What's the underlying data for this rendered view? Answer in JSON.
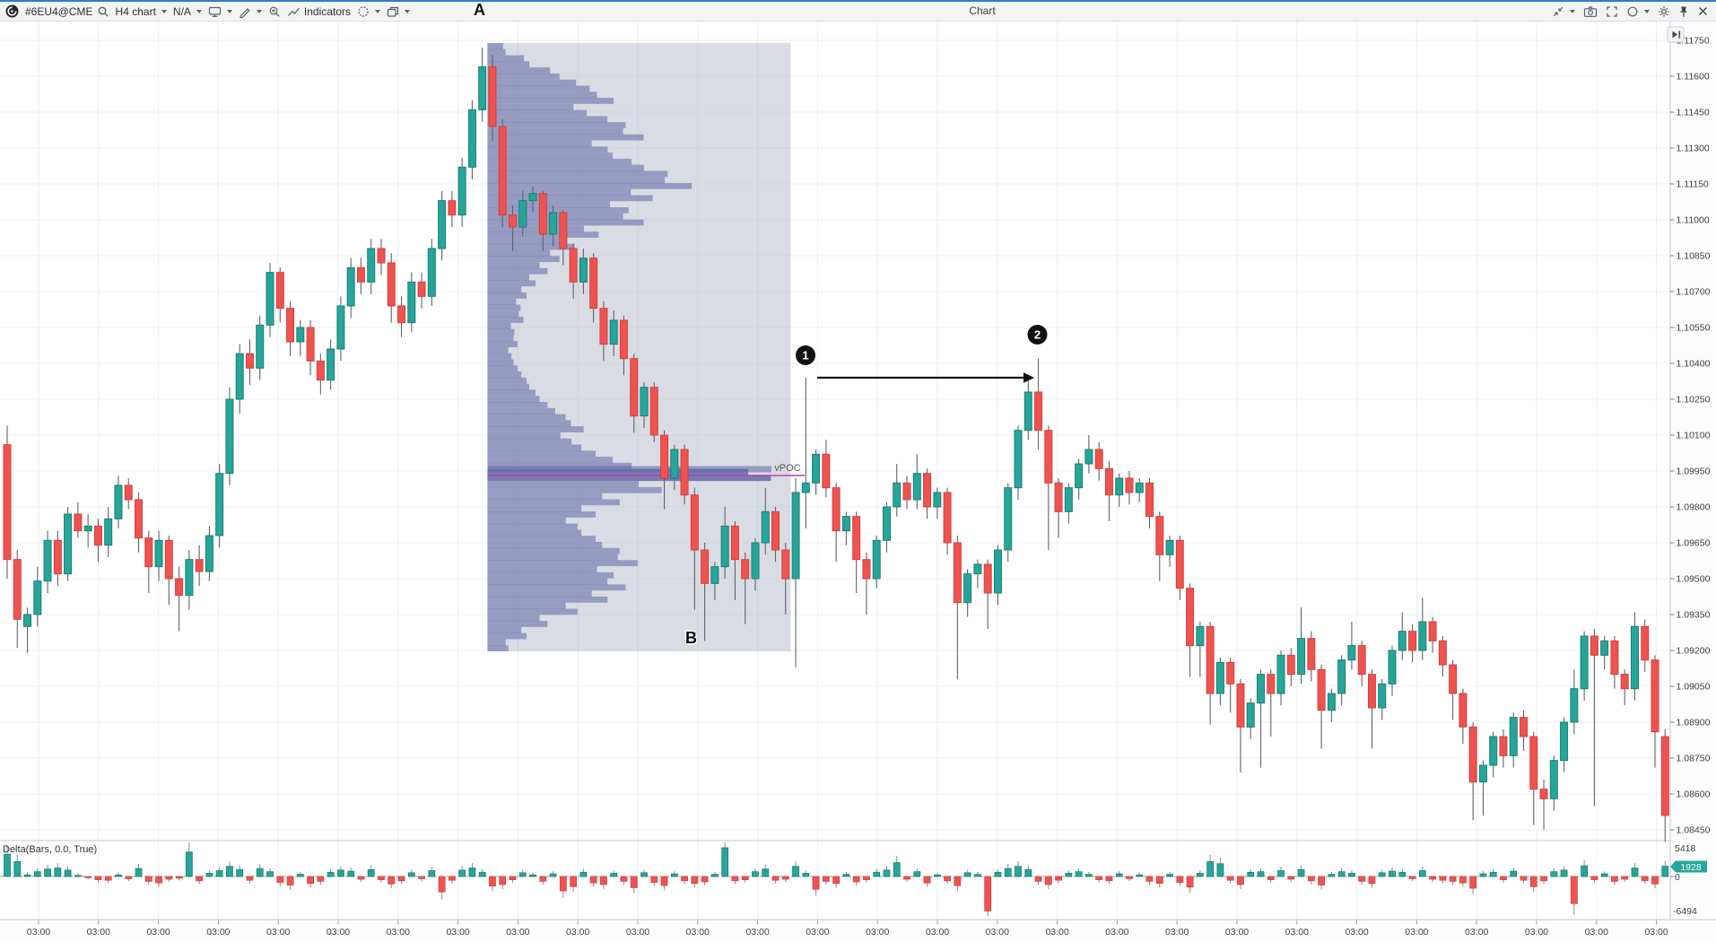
{
  "toolbar": {
    "symbol": "#6EU4@CME",
    "timeframe": "H4 chart",
    "account": "N/A",
    "indicators_label": "Indicators",
    "title": "Chart",
    "left_icons": [
      "logo",
      "search-icon",
      "caret-down-icon",
      "monitor-icon",
      "pencil-icon",
      "zoom-in-icon",
      "trendline-icon",
      "crosshair-icon",
      "layers-icon"
    ],
    "right_icons": [
      "collapse-icon",
      "camera-icon",
      "expand-icon",
      "shape-circle-icon",
      "gear-icon",
      "pin-icon",
      "close-icon"
    ],
    "autoscroll_icon": "play-to-end-icon"
  },
  "annotations": {
    "point_a": "A",
    "point_b": "B",
    "marker_1": "1",
    "marker_2": "2",
    "vpoc_label": "vPOC"
  },
  "delta_panel": {
    "label": "Delta(Bars, 0.0, True)",
    "scale_max": "5418",
    "scale_zero": "0",
    "scale_min": "-6494",
    "last_value": "1928"
  },
  "price_axis": {
    "labels": [
      "1.11750",
      "1.11600",
      "1.11450",
      "1.11300",
      "1.11150",
      "1.11000",
      "1.10850",
      "1.10700",
      "1.10550",
      "1.10400",
      "1.10250",
      "1.10100",
      "1.09950",
      "1.09800",
      "1.09650",
      "1.09500",
      "1.09350",
      "1.09200",
      "1.09050",
      "1.08900",
      "1.08750",
      "1.08600",
      "1.08450"
    ]
  },
  "time_axis": {
    "label": "03:00",
    "tick_count": 28
  },
  "colors": {
    "accent_blue": "#2e7dd2",
    "candle_up": "#26a69a",
    "candle_up_border": "#1d7d72",
    "candle_down": "#ef5350",
    "candle_down_border": "#cf423f",
    "wick": "#5f6368",
    "profile_bar": "rgba(116,121,176,0.66)",
    "profile_vpoc_row": "rgba(99,104,168,0.85)",
    "region_fill": "rgba(167,172,188,0.42)",
    "vpoc_line": "#b93cba",
    "badge_fill": "#26a69a",
    "marker_fill": "#111111"
  },
  "chart_data": {
    "type": "candlestick",
    "symbol": "#6EU4@CME",
    "timeframe": "H4",
    "title": "Chart",
    "price_axis": {
      "top": 1.1175,
      "step": 0.0015,
      "tick_count": 23,
      "bottom": 1.0845
    },
    "candles": [
      [
        1.1006,
        1.1014,
        1.095,
        1.0958
      ],
      [
        1.0958,
        1.0962,
        1.0921,
        1.0933
      ],
      [
        1.093,
        1.0938,
        1.0919,
        1.0935
      ],
      [
        1.0935,
        1.0955,
        1.093,
        1.0949
      ],
      [
        1.0949,
        1.097,
        1.0944,
        1.0966
      ],
      [
        1.0966,
        1.097,
        1.0947,
        1.0952
      ],
      [
        1.0952,
        1.098,
        1.0949,
        1.0977
      ],
      [
        1.0977,
        1.0982,
        1.0967,
        1.097
      ],
      [
        1.097,
        1.0977,
        1.0963,
        1.0972
      ],
      [
        1.0972,
        1.0975,
        1.0957,
        1.0964
      ],
      [
        1.0964,
        1.098,
        1.0959,
        1.0975
      ],
      [
        1.0975,
        1.0993,
        1.0971,
        1.0989
      ],
      [
        1.0989,
        1.0992,
        1.0979,
        1.0983
      ],
      [
        1.0983,
        1.0986,
        1.0961,
        1.0967
      ],
      [
        1.0967,
        1.097,
        1.0944,
        1.0955
      ],
      [
        1.0955,
        1.097,
        1.0949,
        1.0966
      ],
      [
        1.0966,
        1.0968,
        1.0939,
        1.095
      ],
      [
        1.095,
        1.0955,
        1.0928,
        1.0943
      ],
      [
        1.0943,
        1.0962,
        1.0937,
        1.0958
      ],
      [
        1.0958,
        1.0964,
        1.0947,
        1.0953
      ],
      [
        1.0953,
        1.0972,
        1.0949,
        1.0968
      ],
      [
        1.0968,
        1.0998,
        1.0963,
        1.0994
      ],
      [
        1.0994,
        1.103,
        1.0989,
        1.1025
      ],
      [
        1.1025,
        1.1048,
        1.1019,
        1.1044
      ],
      [
        1.1044,
        1.105,
        1.1031,
        1.1038
      ],
      [
        1.1038,
        1.106,
        1.1033,
        1.1056
      ],
      [
        1.1056,
        1.1082,
        1.1051,
        1.1078
      ],
      [
        1.1078,
        1.108,
        1.1057,
        1.1063
      ],
      [
        1.1063,
        1.1066,
        1.1043,
        1.1049
      ],
      [
        1.1049,
        1.1058,
        1.1043,
        1.1055
      ],
      [
        1.1055,
        1.1058,
        1.1035,
        1.1041
      ],
      [
        1.1041,
        1.1044,
        1.1027,
        1.1033
      ],
      [
        1.1033,
        1.105,
        1.1029,
        1.1046
      ],
      [
        1.1046,
        1.1068,
        1.1041,
        1.1064
      ],
      [
        1.1064,
        1.1084,
        1.1059,
        1.108
      ],
      [
        1.108,
        1.1084,
        1.1069,
        1.1074
      ],
      [
        1.1074,
        1.1092,
        1.1069,
        1.1088
      ],
      [
        1.1088,
        1.1092,
        1.1077,
        1.1082
      ],
      [
        1.1082,
        1.1086,
        1.1057,
        1.1064
      ],
      [
        1.1064,
        1.1068,
        1.1051,
        1.1057
      ],
      [
        1.1057,
        1.1078,
        1.1053,
        1.1074
      ],
      [
        1.1074,
        1.1078,
        1.1063,
        1.1068
      ],
      [
        1.1068,
        1.1092,
        1.1064,
        1.1088
      ],
      [
        1.1088,
        1.1112,
        1.1083,
        1.1108
      ],
      [
        1.1108,
        1.1112,
        1.1097,
        1.1102
      ],
      [
        1.1102,
        1.1126,
        1.1097,
        1.1122
      ],
      [
        1.1122,
        1.115,
        1.1117,
        1.1146
      ],
      [
        1.1146,
        1.1172,
        1.1141,
        1.1164
      ],
      [
        1.1164,
        1.1169,
        1.1133,
        1.1139
      ],
      [
        1.1139,
        1.1142,
        1.1097,
        1.1102
      ],
      [
        1.1102,
        1.1106,
        1.1087,
        1.1097
      ],
      [
        1.1097,
        1.1112,
        1.1093,
        1.1108
      ],
      [
        1.1108,
        1.1114,
        1.1103,
        1.1111
      ],
      [
        1.1111,
        1.1112,
        1.1087,
        1.1094
      ],
      [
        1.1094,
        1.1106,
        1.1089,
        1.1103
      ],
      [
        1.1103,
        1.1104,
        1.1081,
        1.1088
      ],
      [
        1.1088,
        1.109,
        1.1067,
        1.1074
      ],
      [
        1.1074,
        1.1088,
        1.1069,
        1.1084
      ],
      [
        1.1084,
        1.1086,
        1.1057,
        1.1063
      ],
      [
        1.1063,
        1.1066,
        1.1041,
        1.1048
      ],
      [
        1.1048,
        1.1062,
        1.1043,
        1.1058
      ],
      [
        1.1058,
        1.106,
        1.1035,
        1.1042
      ],
      [
        1.1042,
        1.1044,
        1.1011,
        1.1018
      ],
      [
        1.1018,
        1.1032,
        1.1013,
        1.103
      ],
      [
        1.103,
        1.1032,
        1.1007,
        1.101
      ],
      [
        1.101,
        1.1012,
        1.0979,
        1.0992
      ],
      [
        1.0992,
        1.1006,
        1.0987,
        1.1004
      ],
      [
        1.1004,
        1.1006,
        1.0981,
        1.0985
      ],
      [
        1.0985,
        1.0988,
        1.0937,
        1.0962
      ],
      [
        1.0962,
        1.0965,
        1.0924,
        1.0948
      ],
      [
        1.0948,
        1.0957,
        1.0941,
        1.0955
      ],
      [
        1.0955,
        1.098,
        1.095,
        1.0972
      ],
      [
        1.0972,
        1.0974,
        1.0941,
        1.0958
      ],
      [
        1.0958,
        1.0961,
        1.0931,
        1.095
      ],
      [
        1.095,
        1.0967,
        1.0945,
        1.0965
      ],
      [
        1.0965,
        1.0988,
        1.096,
        1.0978
      ],
      [
        1.0978,
        1.098,
        1.0957,
        1.0962
      ],
      [
        1.0962,
        1.0965,
        1.0935,
        1.095
      ],
      [
        1.095,
        1.0992,
        1.0913,
        1.0986
      ],
      [
        1.0986,
        1.1034,
        1.0971,
        1.099
      ],
      [
        1.099,
        1.1004,
        1.0985,
        1.1002
      ],
      [
        1.1002,
        1.1008,
        1.0984,
        1.0988
      ],
      [
        1.0988,
        1.099,
        1.0957,
        1.097
      ],
      [
        1.097,
        1.0978,
        1.0964,
        1.0976
      ],
      [
        1.0976,
        1.0978,
        1.0944,
        1.0958
      ],
      [
        1.0958,
        1.0961,
        1.0935,
        1.095
      ],
      [
        1.095,
        1.0968,
        1.0946,
        1.0966
      ],
      [
        1.0966,
        1.0982,
        1.0961,
        1.098
      ],
      [
        1.098,
        1.0998,
        1.0976,
        1.099
      ],
      [
        1.099,
        1.0993,
        1.0979,
        1.0983
      ],
      [
        1.0983,
        1.1002,
        1.0979,
        1.0994
      ],
      [
        1.0994,
        1.0996,
        1.0975,
        1.098
      ],
      [
        1.098,
        1.0988,
        1.0975,
        1.0986
      ],
      [
        1.0986,
        1.0988,
        1.096,
        1.0965
      ],
      [
        1.0965,
        1.0968,
        1.0908,
        1.094
      ],
      [
        1.094,
        1.0954,
        1.0934,
        1.0952
      ],
      [
        1.0952,
        1.0958,
        1.0946,
        1.0956
      ],
      [
        1.0956,
        1.0958,
        1.0929,
        1.0944
      ],
      [
        1.0944,
        1.0964,
        1.0939,
        1.0962
      ],
      [
        1.0962,
        1.099,
        1.0957,
        1.0988
      ],
      [
        1.0988,
        1.1014,
        1.0983,
        1.1012
      ],
      [
        1.1012,
        1.1034,
        1.1008,
        1.1028
      ],
      [
        1.1028,
        1.1042,
        1.1004,
        1.1012
      ],
      [
        1.1012,
        1.1014,
        1.0962,
        1.099
      ],
      [
        1.099,
        1.0992,
        1.0967,
        1.0978
      ],
      [
        1.0978,
        1.099,
        1.0973,
        1.0988
      ],
      [
        1.0988,
        1.1,
        1.0983,
        1.0998
      ],
      [
        1.0998,
        1.101,
        1.0994,
        1.1004
      ],
      [
        1.1004,
        1.1007,
        1.0991,
        1.0996
      ],
      [
        1.0996,
        1.0999,
        1.0974,
        1.0985
      ],
      [
        1.0985,
        1.0994,
        1.098,
        1.0992
      ],
      [
        1.0992,
        1.0995,
        1.0981,
        1.0986
      ],
      [
        1.0986,
        1.0992,
        1.0982,
        1.099
      ],
      [
        1.099,
        1.0992,
        1.0971,
        1.0976
      ],
      [
        1.0976,
        1.0978,
        1.0949,
        1.096
      ],
      [
        1.096,
        1.0968,
        1.0955,
        1.0966
      ],
      [
        1.0966,
        1.0968,
        1.0941,
        1.0946
      ],
      [
        1.0946,
        1.0948,
        1.0909,
        1.0922
      ],
      [
        1.0922,
        1.0932,
        1.0909,
        1.093
      ],
      [
        1.093,
        1.0932,
        1.0889,
        1.0902
      ],
      [
        1.0902,
        1.0917,
        1.0897,
        1.0915
      ],
      [
        1.0915,
        1.0917,
        1.0894,
        1.0906
      ],
      [
        1.0906,
        1.0908,
        1.0869,
        1.0888
      ],
      [
        1.0888,
        1.09,
        1.0883,
        1.0898
      ],
      [
        1.0898,
        1.0912,
        1.0871,
        1.091
      ],
      [
        1.091,
        1.0912,
        1.0884,
        1.0902
      ],
      [
        1.0902,
        1.092,
        1.0897,
        1.0918
      ],
      [
        1.0918,
        1.0921,
        1.0905,
        1.091
      ],
      [
        1.091,
        1.0938,
        1.0906,
        1.0925
      ],
      [
        1.0925,
        1.0928,
        1.0907,
        1.0912
      ],
      [
        1.0912,
        1.0914,
        1.0879,
        1.0895
      ],
      [
        1.0895,
        1.0904,
        1.089,
        1.0902
      ],
      [
        1.0902,
        1.0918,
        1.0897,
        1.0916
      ],
      [
        1.0916,
        1.0932,
        1.0912,
        1.0922
      ],
      [
        1.0922,
        1.0924,
        1.0905,
        1.091
      ],
      [
        1.091,
        1.0912,
        1.0879,
        1.0896
      ],
      [
        1.0896,
        1.0908,
        1.0891,
        1.0906
      ],
      [
        1.0906,
        1.0922,
        1.0901,
        1.092
      ],
      [
        1.092,
        1.0936,
        1.0916,
        1.0928
      ],
      [
        1.0928,
        1.0931,
        1.0915,
        1.092
      ],
      [
        1.092,
        1.0942,
        1.0916,
        1.0932
      ],
      [
        1.0932,
        1.0934,
        1.0919,
        1.0924
      ],
      [
        1.0924,
        1.0926,
        1.0909,
        1.0914
      ],
      [
        1.0914,
        1.0916,
        1.0891,
        1.0902
      ],
      [
        1.0902,
        1.0904,
        1.0881,
        1.0888
      ],
      [
        1.0888,
        1.089,
        1.0849,
        1.0865
      ],
      [
        1.0865,
        1.0874,
        1.0851,
        1.0872
      ],
      [
        1.0872,
        1.0886,
        1.0867,
        1.0884
      ],
      [
        1.0884,
        1.0887,
        1.0871,
        1.0876
      ],
      [
        1.0876,
        1.0894,
        1.0871,
        1.0892
      ],
      [
        1.0892,
        1.0895,
        1.0878,
        1.0884
      ],
      [
        1.0884,
        1.0886,
        1.0847,
        1.0862
      ],
      [
        1.0862,
        1.0866,
        1.0845,
        1.0858
      ],
      [
        1.0858,
        1.0876,
        1.0853,
        1.0874
      ],
      [
        1.0874,
        1.0892,
        1.0869,
        1.089
      ],
      [
        1.089,
        1.0912,
        1.0885,
        1.0904
      ],
      [
        1.0904,
        1.0928,
        1.0899,
        1.0926
      ],
      [
        1.0926,
        1.0929,
        1.0855,
        1.0918
      ],
      [
        1.0918,
        1.0926,
        1.0912,
        1.0924
      ],
      [
        1.0924,
        1.0926,
        1.0904,
        1.091
      ],
      [
        1.091,
        1.0912,
        1.0897,
        1.0904
      ],
      [
        1.0904,
        1.0936,
        1.0899,
        1.093
      ],
      [
        1.093,
        1.0933,
        1.0911,
        1.0916
      ],
      [
        1.0916,
        1.0918,
        1.0871,
        1.0886
      ],
      [
        1.0884,
        1.0887,
        1.084,
        1.0851
      ]
    ],
    "delta": {
      "name": "Delta(Bars, 0.0, True)",
      "scale_max": 5418,
      "scale_min": -6494,
      "last": 1928,
      "values": [
        4200,
        2800,
        300,
        900,
        1400,
        1600,
        1200,
        200,
        -150,
        -600,
        -700,
        300,
        -400,
        1500,
        -900,
        -1200,
        -500,
        -300,
        4600,
        -800,
        600,
        1100,
        1900,
        1300,
        -700,
        1500,
        900,
        -1100,
        -1600,
        400,
        -1300,
        -900,
        800,
        1200,
        1000,
        -500,
        1300,
        -600,
        -1400,
        -800,
        700,
        -400,
        1100,
        -2900,
        -700,
        1200,
        1600,
        800,
        -1800,
        -1500,
        -600,
        700,
        300,
        -900,
        500,
        -2700,
        -1900,
        800,
        -1200,
        -1500,
        600,
        -900,
        -2100,
        700,
        -1100,
        -1700,
        500,
        -800,
        -1300,
        -1000,
        400,
        5418,
        -800,
        -600,
        900,
        1400,
        -700,
        -500,
        1900,
        600,
        -2400,
        -900,
        -1300,
        400,
        -1000,
        -600,
        800,
        1200,
        2600,
        -500,
        900,
        -1200,
        300,
        -800,
        -1700,
        700,
        400,
        -6494,
        800,
        1500,
        1900,
        1300,
        -900,
        -1500,
        -700,
        600,
        900,
        400,
        -600,
        -800,
        500,
        -400,
        300,
        -900,
        -1300,
        400,
        -1100,
        -2000,
        600,
        2800,
        2400,
        -700,
        -1500,
        800,
        900,
        -600,
        1100,
        -500,
        1300,
        -800,
        -1600,
        400,
        900,
        600,
        -900,
        -1300,
        700,
        1000,
        800,
        -400,
        1100,
        -500,
        -700,
        -900,
        -1200,
        -2200,
        500,
        800,
        -600,
        1000,
        -700,
        -1900,
        -800,
        900,
        1200,
        -5100,
        2000,
        -600,
        500,
        -900,
        -500,
        1600,
        -800,
        -1400,
        1928
      ]
    },
    "volume_profile": {
      "from_candle": 48,
      "to_candle": 77,
      "vpoc_price": 1.0993,
      "vpoc_row_index": 35,
      "rows_pct": [
        6,
        14,
        24,
        34,
        42,
        33,
        46,
        52,
        40,
        48,
        60,
        68,
        55,
        47,
        52,
        37,
        29,
        24,
        20,
        16,
        13,
        11,
        12,
        9,
        10,
        8,
        10,
        13,
        16,
        20,
        26,
        32,
        28,
        36,
        48,
        100,
        58,
        44,
        36,
        30,
        36,
        44,
        50,
        42,
        46,
        40,
        30,
        20,
        13,
        7
      ]
    },
    "markers": {
      "a_candle_index": 47,
      "b_candle_index": 68,
      "marker1_candle_index": 79,
      "marker1_price": 1.1034,
      "marker2_candle_index": 102,
      "marker2_price": 1.1042,
      "arrow_price": 1.1034
    },
    "time_ticks": [
      "03:00",
      "03:00",
      "03:00",
      "03:00",
      "03:00",
      "03:00",
      "03:00",
      "03:00",
      "03:00",
      "03:00",
      "03:00",
      "03:00",
      "03:00",
      "03:00",
      "03:00",
      "03:00",
      "03:00",
      "03:00",
      "03:00",
      "03:00",
      "03:00",
      "03:00",
      "03:00",
      "03:00",
      "03:00",
      "03:00",
      "03:00",
      "03:00"
    ]
  }
}
